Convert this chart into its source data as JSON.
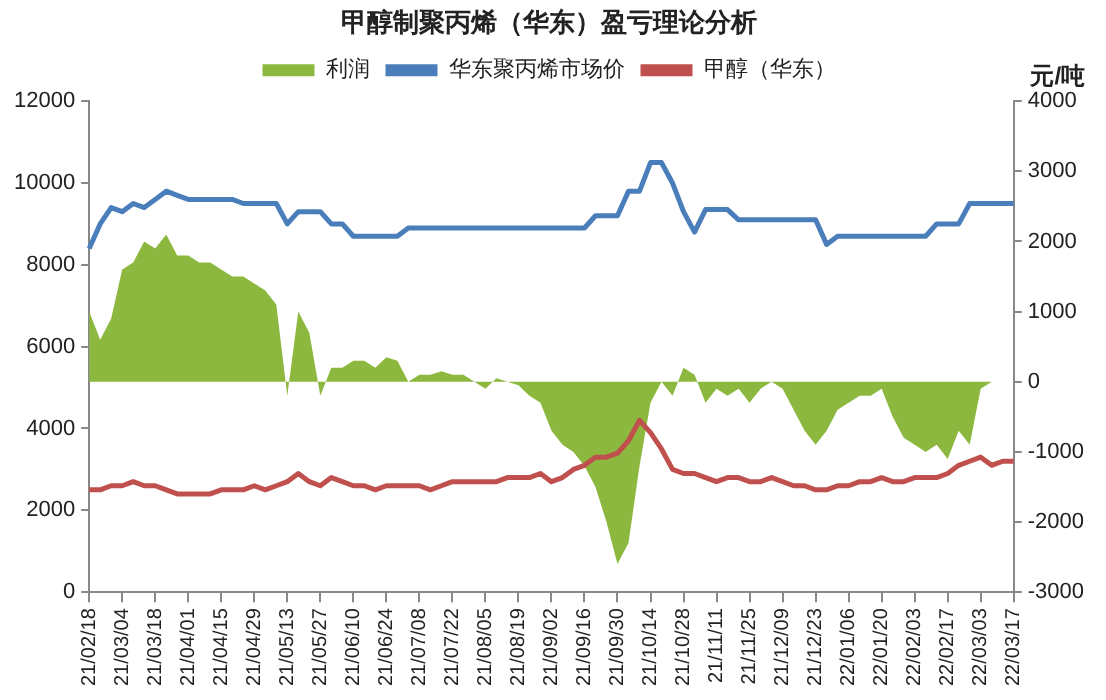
{
  "chart_data": {
    "type": "line",
    "title": "甲醇制聚丙烯（华东）盈亏理论分析",
    "y2label": "元/吨",
    "categories": [
      "21/02/18",
      null,
      null,
      "21/03/04",
      null,
      null,
      "21/03/18",
      null,
      null,
      "21/04/01",
      null,
      null,
      "21/04/15",
      null,
      null,
      "21/04/29",
      null,
      null,
      "21/05/13",
      null,
      null,
      "21/05/27",
      null,
      null,
      "21/06/10",
      null,
      null,
      "21/06/24",
      null,
      null,
      "21/07/08",
      null,
      null,
      "21/07/22",
      null,
      null,
      "21/08/05",
      null,
      null,
      "21/08/19",
      null,
      null,
      "21/09/02",
      null,
      null,
      "21/09/16",
      null,
      null,
      "21/09/30",
      null,
      null,
      "21/10/14",
      null,
      null,
      "21/10/28",
      null,
      null,
      "21/11/11",
      null,
      null,
      "21/11/25",
      null,
      null,
      "21/12/09",
      null,
      null,
      "21/12/23",
      null,
      null,
      "22/01/06",
      null,
      null,
      "22/01/20",
      null,
      null,
      "22/02/03",
      null,
      null,
      "22/02/17",
      null,
      null,
      "22/03/03",
      null,
      null,
      "22/03/17"
    ],
    "series": [
      {
        "name": "利润",
        "type": "area",
        "axis": "y2",
        "color": "#8db83f",
        "values": [
          1000,
          600,
          900,
          1600,
          1700,
          2000,
          1900,
          2100,
          1800,
          1800,
          1700,
          1700,
          1600,
          1500,
          1500,
          1400,
          1300,
          1100,
          -200,
          1000,
          700,
          -200,
          200,
          200,
          300,
          300,
          200,
          350,
          300,
          0,
          100,
          100,
          150,
          100,
          100,
          0,
          -100,
          50,
          0,
          -50,
          -200,
          -300,
          -700,
          -900,
          -1000,
          -1200,
          -1500,
          -2000,
          -2600,
          -2300,
          -1200,
          -300,
          0,
          -200,
          200,
          100,
          -300,
          -100,
          -200,
          -100,
          -300,
          -100,
          0,
          -100,
          -400,
          -700,
          -900,
          -700,
          -400,
          -300,
          -200,
          -200,
          -100,
          -500,
          -800,
          -900,
          -1000,
          -900,
          -1100,
          -700,
          -900,
          -100,
          0,
          0,
          0
        ]
      },
      {
        "name": "华东聚丙烯市场价",
        "color": "#4a7ebb",
        "values": [
          8400,
          9000,
          9400,
          9300,
          9500,
          9400,
          9600,
          9800,
          9700,
          9600,
          9600,
          9600,
          9600,
          9600,
          9500,
          9500,
          9500,
          9500,
          9000,
          9300,
          9300,
          9300,
          9000,
          9000,
          8700,
          8700,
          8700,
          8700,
          8700,
          8900,
          8900,
          8900,
          8900,
          8900,
          8900,
          8900,
          8900,
          8900,
          8900,
          8900,
          8900,
          8900,
          8900,
          8900,
          8900,
          8900,
          9200,
          9200,
          9200,
          9800,
          9800,
          10500,
          10500,
          10000,
          9300,
          8800,
          9350,
          9350,
          9350,
          9100,
          9100,
          9100,
          9100,
          9100,
          9100,
          9100,
          9100,
          8500,
          8700,
          8700,
          8700,
          8700,
          8700,
          8700,
          8700,
          8700,
          8700,
          9000,
          9000,
          9000,
          9500,
          9500,
          9500,
          9500,
          9500
        ]
      },
      {
        "name": "甲醇（华东）",
        "color": "#c0504d",
        "values": [
          2500,
          2500,
          2600,
          2600,
          2700,
          2600,
          2600,
          2500,
          2400,
          2400,
          2400,
          2400,
          2500,
          2500,
          2500,
          2600,
          2500,
          2600,
          2700,
          2900,
          2700,
          2600,
          2800,
          2700,
          2600,
          2600,
          2500,
          2600,
          2600,
          2600,
          2600,
          2500,
          2600,
          2700,
          2700,
          2700,
          2700,
          2700,
          2800,
          2800,
          2800,
          2900,
          2700,
          2800,
          3000,
          3100,
          3300,
          3300,
          3400,
          3700,
          4200,
          3900,
          3500,
          3000,
          2900,
          2900,
          2800,
          2700,
          2800,
          2800,
          2700,
          2700,
          2800,
          2700,
          2600,
          2600,
          2500,
          2500,
          2600,
          2600,
          2700,
          2700,
          2800,
          2700,
          2700,
          2800,
          2800,
          2800,
          2900,
          3100,
          3200,
          3300,
          3100,
          3200,
          3200
        ]
      }
    ],
    "ylim": [
      0,
      12000
    ],
    "yticks": [
      0,
      2000,
      4000,
      6000,
      8000,
      10000,
      12000
    ],
    "y2lim": [
      -3000,
      4000
    ],
    "y2ticks": [
      -3000,
      -2000,
      -1000,
      0,
      1000,
      2000,
      3000,
      4000
    ],
    "grid": false,
    "legend": "top",
    "marker": "none",
    "line_style": "solid"
  }
}
